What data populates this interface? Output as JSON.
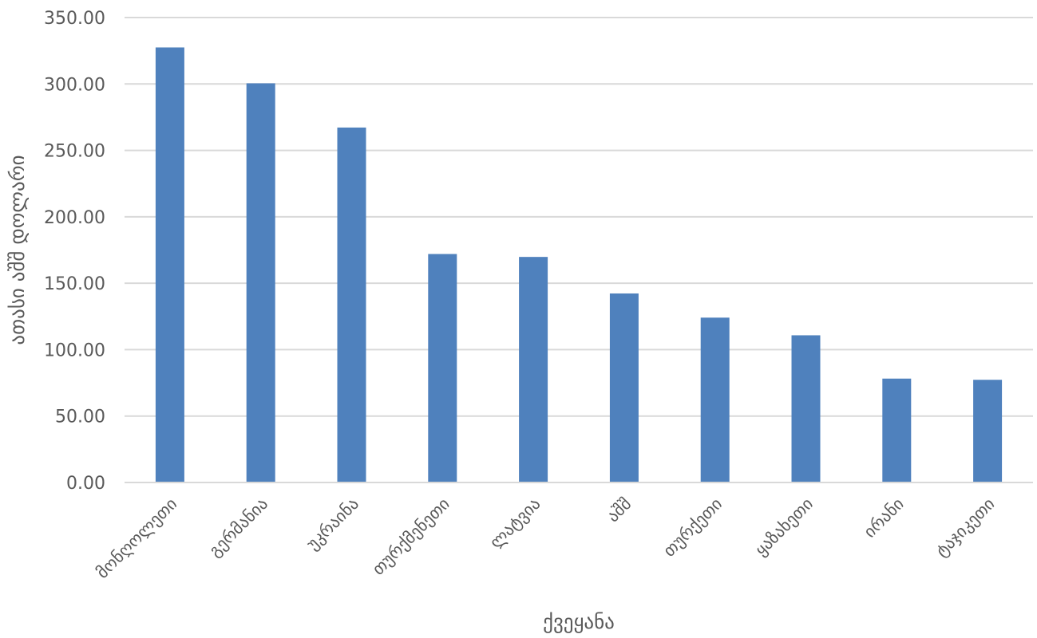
{
  "chart_data": {
    "type": "bar",
    "title": "",
    "xlabel": "ქვეყანა",
    "ylabel": "ათასი აშშ დოლარი",
    "ylim": [
      0,
      350
    ],
    "yticks": [
      "0.00",
      "50.00",
      "100.00",
      "150.00",
      "200.00",
      "250.00",
      "300.00",
      "350.00"
    ],
    "grid": true,
    "legend": "none",
    "bar_color": "#4f81bd",
    "categories": [
      "მონღოლეთი",
      "გერმანია",
      "უკრაინა",
      "თურქმენეთი",
      "ლატვია",
      "აშშ",
      "თურქეთი",
      "ყაზახეთი",
      "ირანი",
      "ტაჯიკეთი"
    ],
    "values": [
      327.5,
      300.5,
      267.2,
      172.0,
      169.8,
      142.3,
      124.1,
      110.8,
      78.2,
      77.3
    ]
  }
}
